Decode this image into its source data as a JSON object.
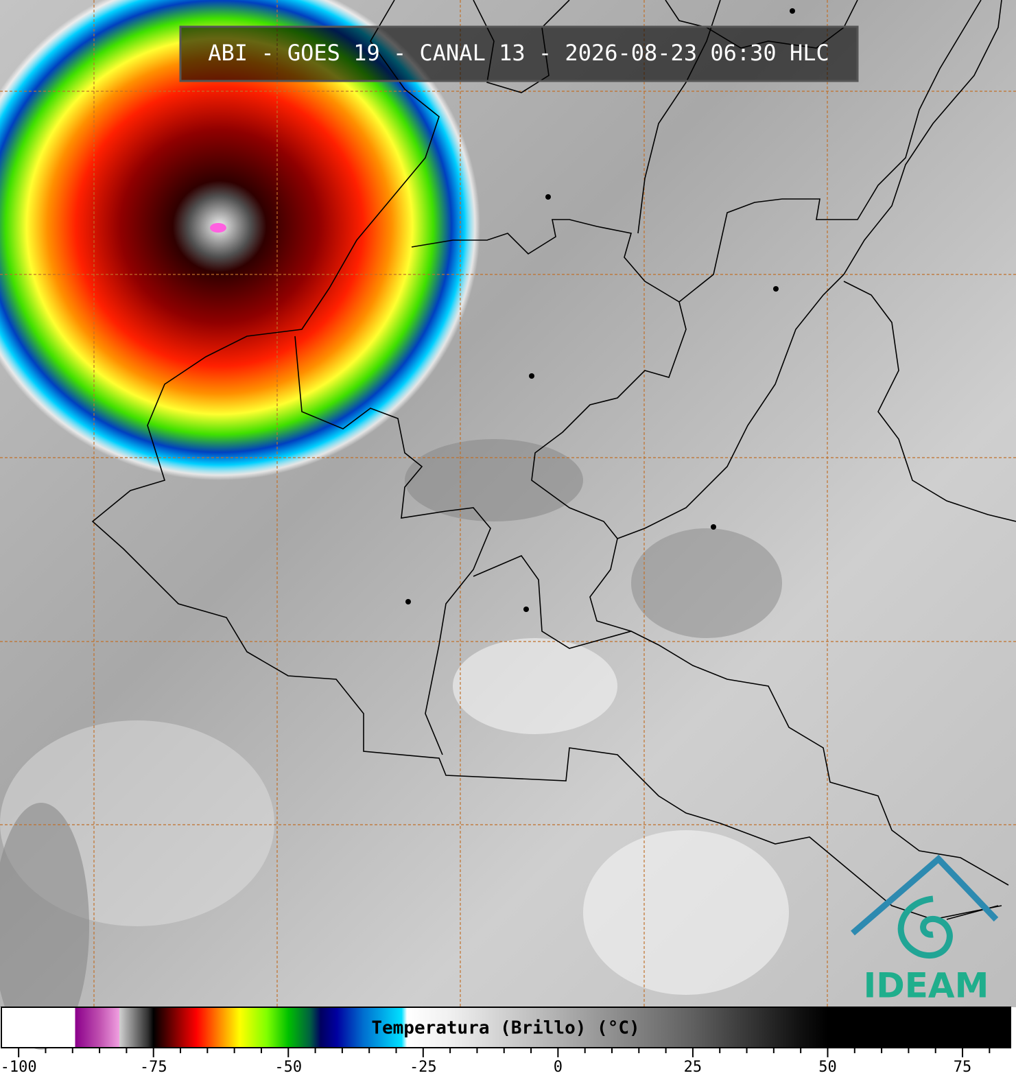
{
  "header": {
    "title": "ABI - GOES 19 - CANAL 13 - 2026-08-23 06:30 HLC"
  },
  "logo": {
    "text": "IDEAM"
  },
  "colorbar": {
    "label": "Temperatura (Brillo) (°C)",
    "xlim": [
      -103.2,
      83.9
    ],
    "xticks": [
      -100,
      -75,
      -50,
      -25,
      0,
      25,
      50,
      75
    ],
    "minor_ticks": [
      -95,
      -90,
      -85,
      -80,
      -70,
      -65,
      -60,
      -55,
      -45,
      -40,
      -35,
      -30,
      -20,
      -15,
      -10,
      -5,
      5,
      10,
      15,
      20,
      30,
      35,
      40,
      45,
      55,
      60,
      65,
      70,
      80
    ],
    "stops": [
      {
        "value": -103.2,
        "color": "#ffffff"
      },
      {
        "value": -89.5,
        "color": "#ffffff"
      },
      {
        "value": -89.5,
        "color": "#8b008b"
      },
      {
        "value": -85,
        "color": "#c050b0"
      },
      {
        "value": -81.3,
        "color": "#f0a0e0"
      },
      {
        "value": -81.3,
        "color": "#d0d0d0"
      },
      {
        "value": -76,
        "color": "#303030"
      },
      {
        "value": -75,
        "color": "#000000"
      },
      {
        "value": -73,
        "color": "#400000"
      },
      {
        "value": -70,
        "color": "#a00000"
      },
      {
        "value": -67,
        "color": "#ff0000"
      },
      {
        "value": -63,
        "color": "#ff8000"
      },
      {
        "value": -59,
        "color": "#ffff00"
      },
      {
        "value": -54,
        "color": "#80ff00"
      },
      {
        "value": -50,
        "color": "#00c000"
      },
      {
        "value": -46,
        "color": "#006040"
      },
      {
        "value": -44,
        "color": "#000060"
      },
      {
        "value": -41,
        "color": "#0000a0"
      },
      {
        "value": -36,
        "color": "#0070d0"
      },
      {
        "value": -29,
        "color": "#00e0ff"
      },
      {
        "value": -28,
        "color": "#ffffff"
      },
      {
        "value": -20,
        "color": "#f0f0f0"
      },
      {
        "value": 0,
        "color": "#b0b0b0"
      },
      {
        "value": 25,
        "color": "#606060"
      },
      {
        "value": 45,
        "color": "#101010"
      },
      {
        "value": 50,
        "color": "#000000"
      },
      {
        "value": 83.9,
        "color": "#000000"
      }
    ]
  }
}
